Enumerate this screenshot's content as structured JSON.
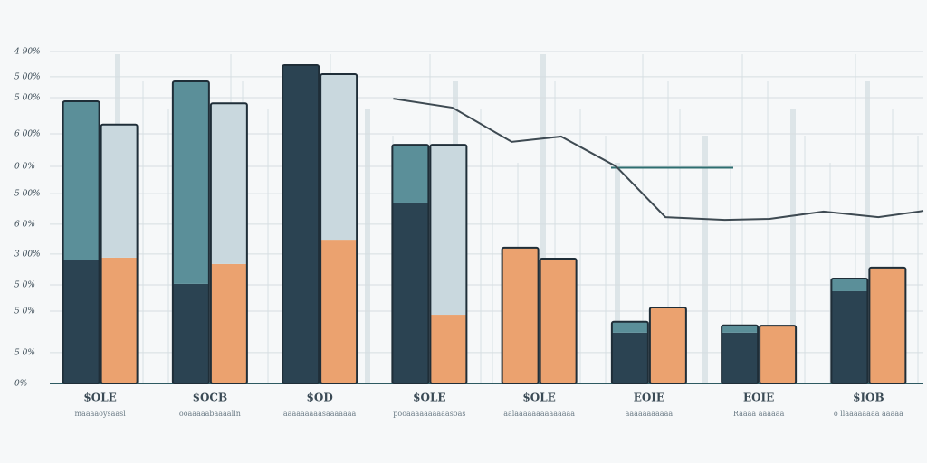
{
  "chart_data": {
    "type": "bar",
    "categories": [
      "$OLE",
      "$OCB",
      "$OD",
      "$OLE",
      "$OLE",
      "EOIE",
      "EOIE",
      "$IOB"
    ],
    "sublabels": [
      "maaaaoysaasl",
      "ooaaaaabaaaalln",
      "aaaaaaaaasaaaaaaa",
      "pooaaaaaaaaaasoas",
      "aalaaaaaaaaaaaaaa",
      "aaaaaaaaaaa",
      "Raaaa aaaaaa",
      "o llaaaaaaaa aaaaa"
    ],
    "ylim": [
      0,
      100
    ],
    "yticks": [
      {
        "value": 0,
        "label": "0%"
      },
      {
        "value": 9.3,
        "label": "5 0%"
      },
      {
        "value": 21.8,
        "label": "5 0%"
      },
      {
        "value": 29.7,
        "label": "5 0%"
      },
      {
        "value": 39.0,
        "label": "3 00%"
      },
      {
        "value": 48.0,
        "label": "6 0%"
      },
      {
        "value": 57.2,
        "label": "5 00%"
      },
      {
        "value": 65.4,
        "label": "0 0%"
      },
      {
        "value": 75.2,
        "label": "6 00%"
      },
      {
        "value": 86.1,
        "label": "5 00%"
      },
      {
        "value": 92.4,
        "label": "5 00%"
      },
      {
        "value": 100,
        "label": "4 90%"
      }
    ],
    "grid": true,
    "series": [
      {
        "color": "#2b4352",
        "stack": "left",
        "values": [
          37.3,
          30.0,
          95.9,
          54.5,
          null,
          15.3,
          15.3,
          27.8
        ]
      },
      {
        "color": "#5b8f99",
        "stack": "left",
        "values": [
          47.7,
          61.0,
          null,
          17.4,
          null,
          3.3,
          2.2,
          3.8
        ]
      },
      {
        "color": "#eba26f",
        "stack": "left",
        "values": [
          null,
          null,
          null,
          null,
          40.9,
          null,
          null,
          null
        ]
      },
      {
        "color": "#eba26f",
        "stack": "right",
        "values": [
          37.9,
          36.0,
          43.3,
          20.7,
          37.6,
          22.9,
          17.4,
          34.9
        ]
      },
      {
        "color": "#c9d8de",
        "stack": "right",
        "values": [
          40.1,
          48.4,
          49.9,
          51.2,
          null,
          null,
          null,
          null
        ]
      }
    ],
    "line": {
      "color": "#3e4a52",
      "x": [
        2.67,
        3.21,
        3.75,
        4.2,
        4.7,
        5.15,
        5.69,
        6.1,
        6.59,
        7.09,
        7.5
      ],
      "values": [
        85.8,
        83.1,
        72.8,
        74.4,
        65.4,
        50.1,
        49.3,
        49.6,
        51.8,
        50.1,
        52.0
      ]
    }
  }
}
